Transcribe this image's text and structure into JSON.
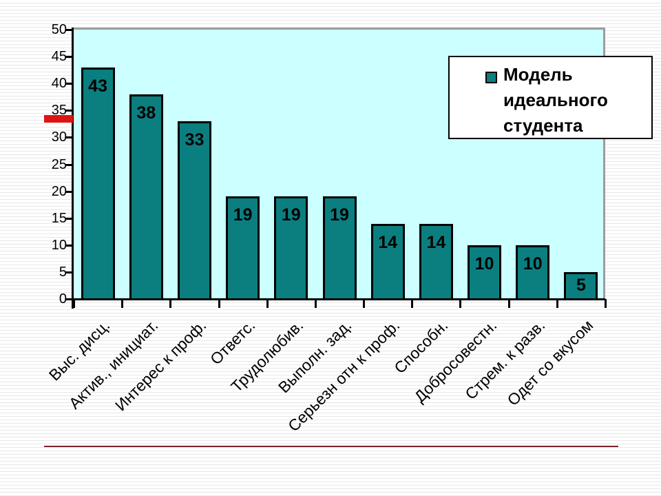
{
  "slide": {
    "accent_bar_color": "#DE1414",
    "divider_color": "#7D222C"
  },
  "chart_data": {
    "type": "bar",
    "title": "",
    "categories": [
      "Выс. дисц.",
      "Актив., инициат.",
      "Интерес к проф.",
      "Ответс.",
      "Трудолюбив.",
      "Выполн. зад.",
      "Серьезн отн к проф.",
      "Способн.",
      "Добросовестн.",
      "Стрем. к разв.",
      "Одет со вкусом"
    ],
    "series": [
      {
        "name": "Модель идеального студента",
        "values": [
          43,
          38,
          33,
          19,
          19,
          19,
          14,
          14,
          10,
          10,
          5
        ]
      }
    ],
    "data_labels": [
      43,
      38,
      33,
      19,
      19,
      19,
      14,
      14,
      10,
      10,
      5
    ],
    "ylim": [
      0,
      50
    ],
    "yticks": [
      0,
      5,
      10,
      15,
      20,
      25,
      30,
      35,
      40,
      45,
      50
    ],
    "grid": false,
    "legend": {
      "label": "Модель идеального студента",
      "position": "top-right"
    },
    "colors": {
      "bar_fill": "#0B7F80",
      "bar_border": "#000000",
      "plot_bg": "#CCFFFF",
      "plot_border": "#9C9C9C",
      "axis": "#000000",
      "text": "#000000"
    }
  }
}
